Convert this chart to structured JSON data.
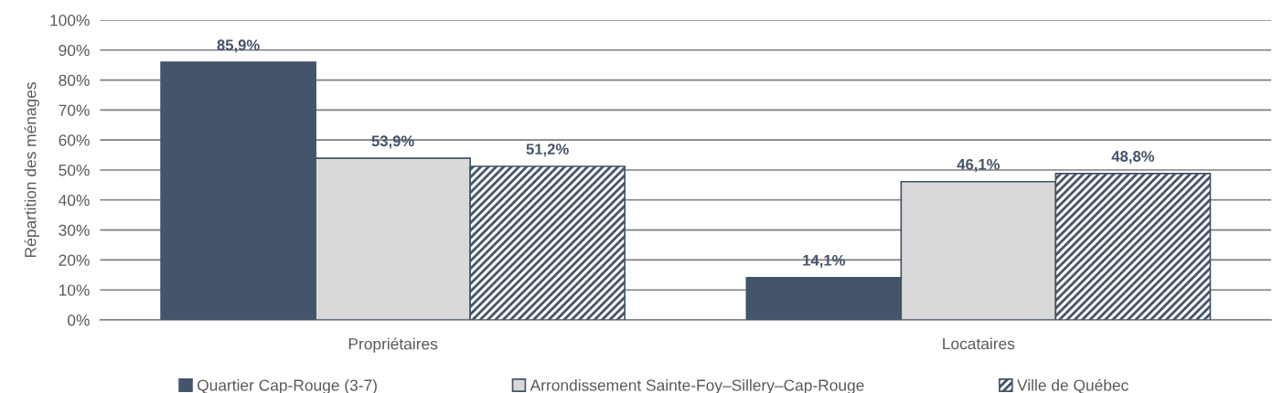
{
  "chart_data": {
    "type": "bar",
    "ylabel": "Répartition des ménages",
    "categories": [
      "Propriétaires",
      "Locataires"
    ],
    "series": [
      {
        "name": "Quartier Cap-Rouge (3-7)",
        "color": "#44546a",
        "values": [
          85.9,
          14.1
        ],
        "value_labels": [
          "85,9%",
          "14,1%"
        ]
      },
      {
        "name": "Arrondissement Sainte-Foy–Sillery–Cap-Rouge",
        "color": "#d9d9d9",
        "values": [
          53.9,
          46.1
        ],
        "value_labels": [
          "53,9%",
          "46,1%"
        ]
      },
      {
        "name": "Ville de Québec",
        "color": "#44546a",
        "values": [
          51.2,
          48.8
        ],
        "value_labels": [
          "51,2%",
          "48,8%"
        ]
      }
    ],
    "ylim": [
      0,
      100
    ],
    "yticks": [
      {
        "value": 0,
        "label": "0%"
      },
      {
        "value": 10,
        "label": "10%"
      },
      {
        "value": 20,
        "label": "20%"
      },
      {
        "value": 30,
        "label": "30%"
      },
      {
        "value": 40,
        "label": "40%"
      },
      {
        "value": 50,
        "label": "50%"
      },
      {
        "value": 60,
        "label": "60%"
      },
      {
        "value": 70,
        "label": "70%"
      },
      {
        "value": 80,
        "label": "80%"
      },
      {
        "value": 90,
        "label": "90%"
      },
      {
        "value": 100,
        "label": "100%"
      }
    ],
    "grid": "y",
    "legend": "bottom"
  }
}
